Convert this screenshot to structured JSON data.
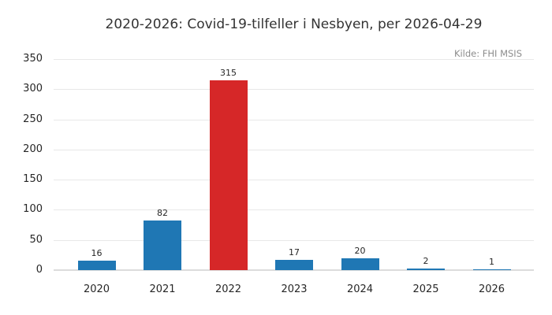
{
  "chart_data": {
    "type": "bar",
    "title": "2020-2026: Covid-19-tilfeller i Nesbyen, per 2026-04-29",
    "source_note": "Kilde: FHI MSIS",
    "categories": [
      "2020",
      "2021",
      "2022",
      "2023",
      "2024",
      "2025",
      "2026"
    ],
    "values": [
      16,
      82,
      315,
      17,
      20,
      2,
      1
    ],
    "value_labels": [
      "16",
      "82",
      "315",
      "17",
      "20",
      "2",
      "1"
    ],
    "bar_colors": [
      "#1f77b4",
      "#1f77b4",
      "#d62728",
      "#1f77b4",
      "#1f77b4",
      "#1f77b4",
      "#1f77b4"
    ],
    "xlabel": "",
    "ylabel": "",
    "ylim": [
      0,
      350
    ],
    "y_ticks": [
      0,
      50,
      100,
      150,
      200,
      250,
      300,
      350
    ],
    "grid": "horizontal",
    "legend": "none",
    "colors": {
      "bar_default": "#1f77b4",
      "bar_highlight": "#d62728",
      "gridline": "#e8e8e8",
      "baseline": "#dcdcdc",
      "title_text": "#333333",
      "tick_text": "#262626",
      "source_text": "#8c8c8c"
    }
  }
}
